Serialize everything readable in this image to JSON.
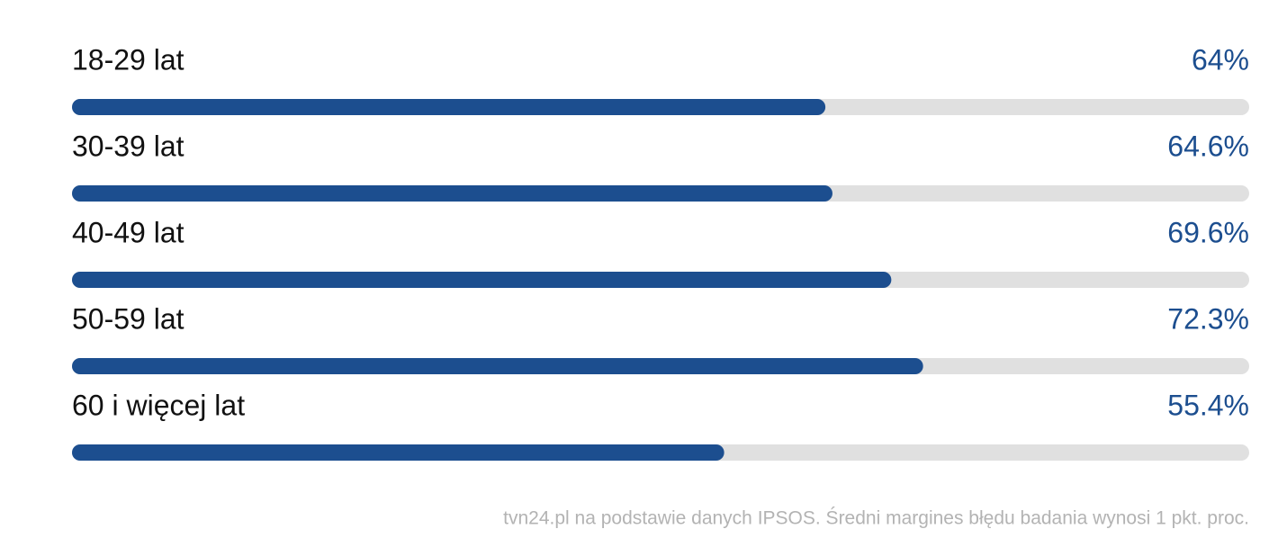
{
  "chart_data": {
    "type": "bar",
    "orientation": "horizontal",
    "categories": [
      "18-29 lat",
      "30-39 lat",
      "40-49 lat",
      "50-59 lat",
      "60 i więcej lat"
    ],
    "values": [
      64,
      64.6,
      69.6,
      72.3,
      55.4
    ],
    "value_labels": [
      "64%",
      "64.6%",
      "69.6%",
      "72.3%",
      "55.4%"
    ],
    "color": "#1c4e8f",
    "xlim": [
      0,
      100
    ],
    "source": "tvn24.pl na podstawie danych IPSOS. Średni margines błędu badania wynosi 1 pkt. proc."
  }
}
